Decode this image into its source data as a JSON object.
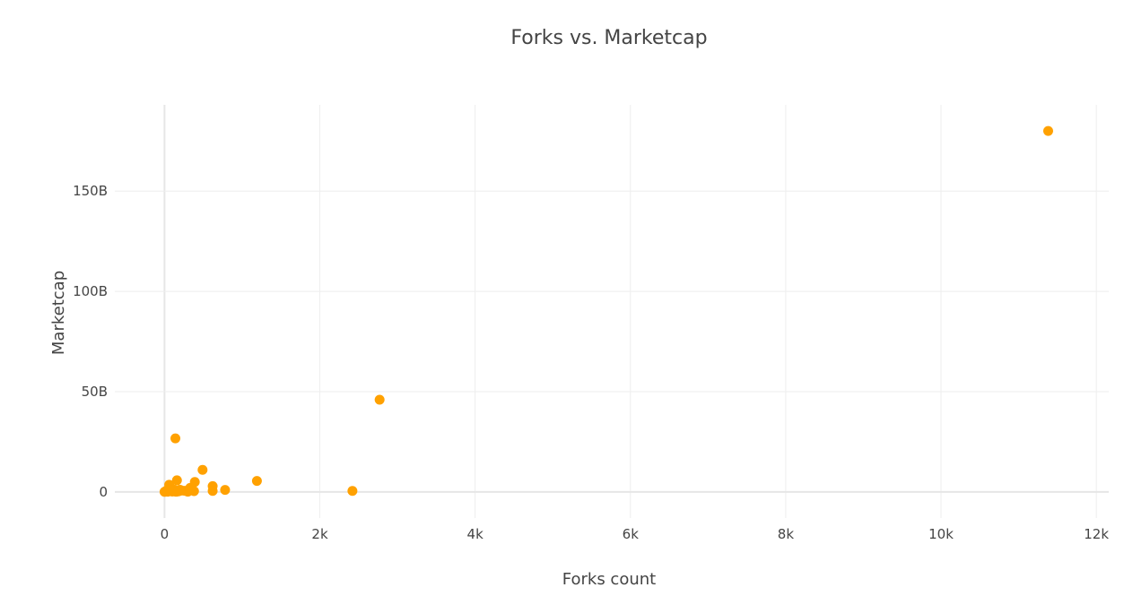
{
  "chart_data": {
    "type": "scatter",
    "title": "Forks vs. Marketcap",
    "xlabel": "Forks count",
    "ylabel": "Marketcap",
    "xlim": [
      -640,
      12160
    ],
    "ylim": [
      -13000000000,
      193000000000
    ],
    "x_ticks": [
      {
        "value": 0,
        "label": "0"
      },
      {
        "value": 2000,
        "label": "2k"
      },
      {
        "value": 4000,
        "label": "4k"
      },
      {
        "value": 6000,
        "label": "6k"
      },
      {
        "value": 8000,
        "label": "8k"
      },
      {
        "value": 10000,
        "label": "10k"
      },
      {
        "value": 12000,
        "label": "12k"
      }
    ],
    "y_ticks": [
      {
        "value": 0,
        "label": "0"
      },
      {
        "value": 50000000000,
        "label": "50B"
      },
      {
        "value": 100000000000,
        "label": "100B"
      },
      {
        "value": 150000000000,
        "label": "150B"
      }
    ],
    "grid": true,
    "marker_color": "#ffa100",
    "points": [
      {
        "x": 11380,
        "y": 180000000000
      },
      {
        "x": 2770,
        "y": 46000000000
      },
      {
        "x": 140,
        "y": 26700000000
      },
      {
        "x": 490,
        "y": 11000000000
      },
      {
        "x": 1190,
        "y": 5500000000
      },
      {
        "x": 2420,
        "y": 500000000
      },
      {
        "x": 160,
        "y": 5800000000
      },
      {
        "x": 390,
        "y": 5000000000
      },
      {
        "x": 60,
        "y": 3600000000
      },
      {
        "x": 620,
        "y": 2900000000
      },
      {
        "x": 780,
        "y": 1000000000
      },
      {
        "x": 620,
        "y": 500000000
      },
      {
        "x": 330,
        "y": 2000000000
      },
      {
        "x": 380,
        "y": 400000000
      },
      {
        "x": 260,
        "y": 600000000
      },
      {
        "x": 220,
        "y": 700000000
      },
      {
        "x": 180,
        "y": 300000000
      },
      {
        "x": 120,
        "y": 1200000000
      },
      {
        "x": 100,
        "y": 200000000
      },
      {
        "x": 80,
        "y": 900000000
      },
      {
        "x": 40,
        "y": 100000000
      },
      {
        "x": 20,
        "y": 500000000
      },
      {
        "x": 0,
        "y": 50000000
      },
      {
        "x": 10,
        "y": 150000000
      },
      {
        "x": 300,
        "y": 150000000
      },
      {
        "x": 150,
        "y": 100000000
      },
      {
        "x": 50,
        "y": 1500000000
      },
      {
        "x": 200,
        "y": 1100000000
      }
    ]
  }
}
